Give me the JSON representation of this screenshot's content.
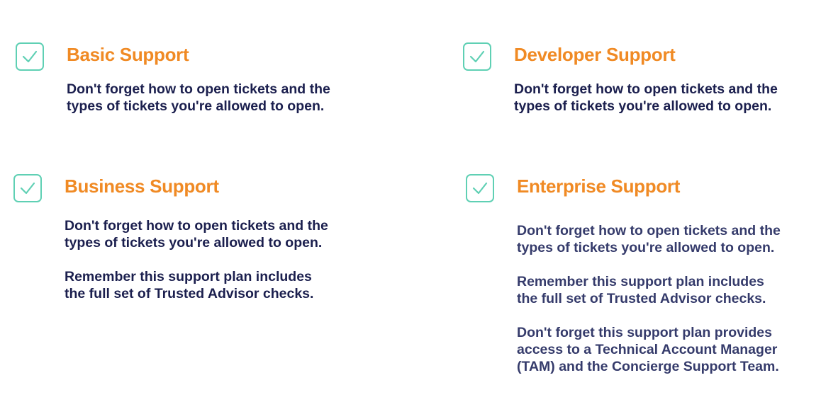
{
  "colors": {
    "accent_title": "#f08a24",
    "check": "#5fd0b4",
    "text_dark": "#1b1f4e",
    "text_muted": "#353b6b"
  },
  "cards": [
    {
      "title": "Basic Support",
      "icon": "check-square-icon",
      "paragraphs": [
        [
          "Don't forget how to open tickets and the",
          "types of tickets you're allowed to open."
        ]
      ]
    },
    {
      "title": "Developer Support",
      "icon": "check-square-icon",
      "paragraphs": [
        [
          "Don't forget how to open tickets and the",
          "types of tickets you're allowed to open."
        ]
      ]
    },
    {
      "title": "Business Support",
      "icon": "check-square-icon",
      "paragraphs": [
        [
          "Don't forget how to open tickets and the",
          "types of tickets you're allowed to open."
        ],
        [
          "Remember this support plan includes",
          "the full set of Trusted Advisor checks."
        ]
      ]
    },
    {
      "title": "Enterprise Support",
      "icon": "check-square-icon",
      "paragraphs": [
        [
          "Don't forget how to open tickets and the",
          "types of tickets you're allowed to open."
        ],
        [
          "Remember this support plan includes",
          "the full set of Trusted Advisor checks."
        ],
        [
          "Don't forget this support plan provides",
          "access to a Technical Account Manager",
          "(TAM) and the Concierge Support Team."
        ]
      ]
    }
  ]
}
